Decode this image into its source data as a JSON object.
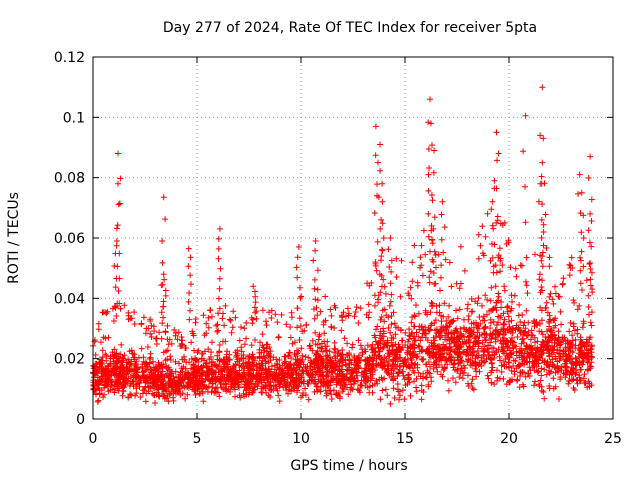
{
  "chart_data": {
    "type": "scatter",
    "title": "Day 277 of 2024, Rate Of TEC Index for receiver 5pta",
    "xlabel": "GPS time / hours",
    "ylabel": "ROTI / TECUs",
    "xlim": [
      0,
      25
    ],
    "ylim": [
      0,
      0.12
    ],
    "xticks": [
      0,
      5,
      10,
      15,
      20,
      25
    ],
    "yticks": [
      0,
      0.02,
      0.04,
      0.06,
      0.08,
      0.1,
      0.12
    ],
    "xtick_labels": [
      "0",
      "5",
      "10",
      "15",
      "20",
      "25"
    ],
    "ytick_labels": [
      "0",
      "0.02",
      "0.04",
      "0.06",
      "0.08",
      "0.1",
      "0.12"
    ],
    "grid": true,
    "marker": "+",
    "color": "#ff0000",
    "profile": {
      "description": "Dense scatter of ROTI samples from 0 to 24 h; typical band 0.005-0.03 TECU/s with spikes",
      "hours": [
        0,
        1,
        2,
        3,
        4,
        5,
        6,
        7,
        8,
        9,
        10,
        11,
        12,
        13,
        14,
        15,
        16,
        17,
        18,
        19,
        20,
        21,
        22,
        23,
        24
      ],
      "typical_upper": [
        0.025,
        0.03,
        0.028,
        0.025,
        0.024,
        0.026,
        0.03,
        0.028,
        0.03,
        0.028,
        0.032,
        0.034,
        0.028,
        0.035,
        0.045,
        0.04,
        0.05,
        0.048,
        0.045,
        0.055,
        0.05,
        0.045,
        0.045,
        0.042,
        0.04
      ],
      "typical_lower": [
        0.005,
        0.005,
        0.004,
        0.004,
        0.004,
        0.004,
        0.004,
        0.004,
        0.004,
        0.004,
        0.004,
        0.004,
        0.004,
        0.004,
        0.004,
        0.004,
        0.006,
        0.007,
        0.007,
        0.006,
        0.006,
        0.005,
        0.005,
        0.005,
        0.005
      ]
    },
    "peaks": [
      {
        "x": 1.2,
        "y": 0.088
      },
      {
        "x": 1.2,
        "y": 0.078
      },
      {
        "x": 1.15,
        "y": 0.059
      },
      {
        "x": 3.4,
        "y": 0.0735
      },
      {
        "x": 3.4,
        "y": 0.048
      },
      {
        "x": 4.6,
        "y": 0.0565
      },
      {
        "x": 6.1,
        "y": 0.063
      },
      {
        "x": 7.7,
        "y": 0.044
      },
      {
        "x": 9.9,
        "y": 0.057
      },
      {
        "x": 10.7,
        "y": 0.059
      },
      {
        "x": 13.6,
        "y": 0.097
      },
      {
        "x": 13.8,
        "y": 0.091
      },
      {
        "x": 13.7,
        "y": 0.085
      },
      {
        "x": 13.9,
        "y": 0.078
      },
      {
        "x": 14.3,
        "y": 0.06
      },
      {
        "x": 16.2,
        "y": 0.106
      },
      {
        "x": 16.25,
        "y": 0.098
      },
      {
        "x": 16.4,
        "y": 0.089
      },
      {
        "x": 16.8,
        "y": 0.072
      },
      {
        "x": 19.4,
        "y": 0.095
      },
      {
        "x": 19.5,
        "y": 0.088
      },
      {
        "x": 19.3,
        "y": 0.079
      },
      {
        "x": 19.8,
        "y": 0.065
      },
      {
        "x": 20.8,
        "y": 0.1005
      },
      {
        "x": 21.6,
        "y": 0.11
      },
      {
        "x": 21.65,
        "y": 0.093
      },
      {
        "x": 21.6,
        "y": 0.085
      },
      {
        "x": 21.5,
        "y": 0.078
      },
      {
        "x": 23.4,
        "y": 0.081
      },
      {
        "x": 23.5,
        "y": 0.075
      },
      {
        "x": 23.9,
        "y": 0.087
      },
      {
        "x": 23.9,
        "y": 0.068
      }
    ]
  }
}
